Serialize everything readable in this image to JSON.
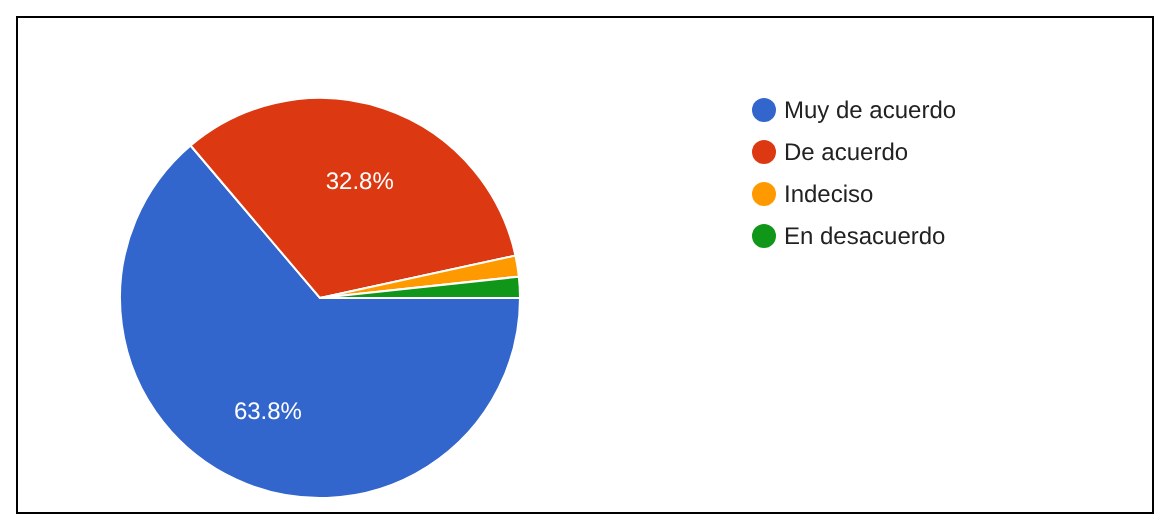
{
  "chart_data": {
    "type": "pie",
    "categories": [
      "Muy de acuerdo",
      "De acuerdo",
      "Indeciso",
      "En desacuerdo"
    ],
    "values": [
      63.8,
      32.8,
      1.7,
      1.7
    ],
    "colors": [
      "#3366cc",
      "#dc3912",
      "#ff9900",
      "#109618"
    ],
    "value_labels": [
      "63.8%",
      "32.8%",
      null,
      null
    ],
    "legend": "right"
  }
}
